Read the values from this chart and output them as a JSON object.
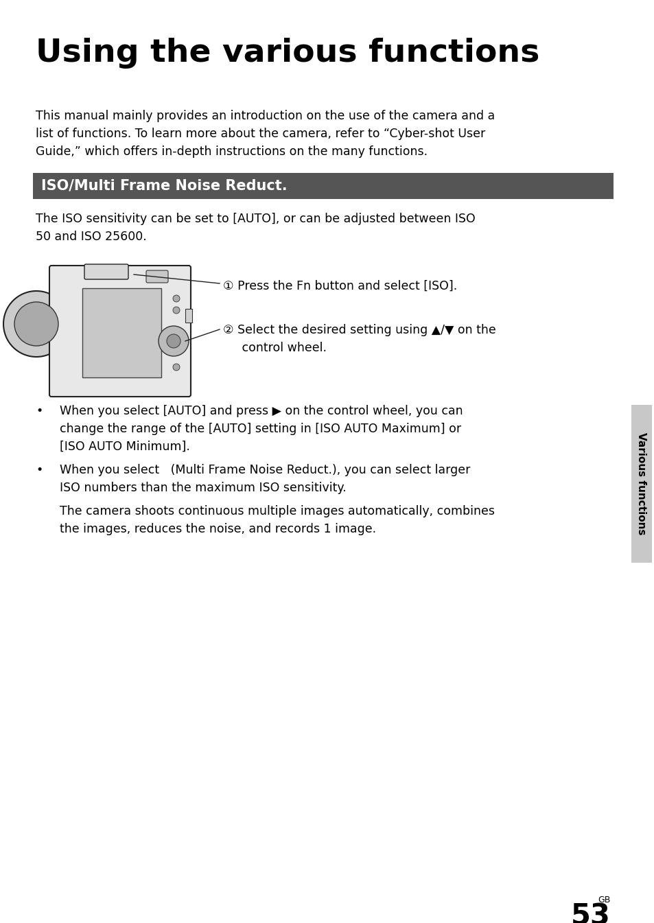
{
  "title": "Using the various functions",
  "bg_color": "#ffffff",
  "title_color": "#000000",
  "header_bg": "#555555",
  "header_text": "ISO/Multi Frame Noise Reduct.",
  "header_text_color": "#ffffff",
  "body_text_1a": "This manual mainly provides an introduction on the use of the camera and a",
  "body_text_1b": "list of functions. To learn more about the camera, refer to “Cyber-shot User",
  "body_text_1c": "Guide,” which offers in-depth instructions on the many functions.",
  "body_text_2a": "The ISO sensitivity can be set to [AUTO], or can be adjusted between ISO",
  "body_text_2b": "50 and ISO 25600.",
  "step1_text": "① Press the Fn button and select [ISO].",
  "step2_line1": "② Select the desired setting using ▲/▼ on the",
  "step2_line2": "     control wheel.",
  "bullet1_line1": "When you select [AUTO] and press ▶ on the control wheel, you can",
  "bullet1_line2": "change the range of the [AUTO] setting in [ISO AUTO Maximum] or",
  "bullet1_line3": "[ISO AUTO Minimum].",
  "bullet2_line1": "When you select   (Multi Frame Noise Reduct.), you can select larger",
  "bullet2_line2": "ISO numbers than the maximum ISO sensitivity.",
  "bullet2_line3": "The camera shoots continuous multiple images automatically, combines",
  "bullet2_line4": "the images, reduces the noise, and records 1 image.",
  "sidebar_text": "Various functions",
  "page_num": "53",
  "page_label": "GB"
}
